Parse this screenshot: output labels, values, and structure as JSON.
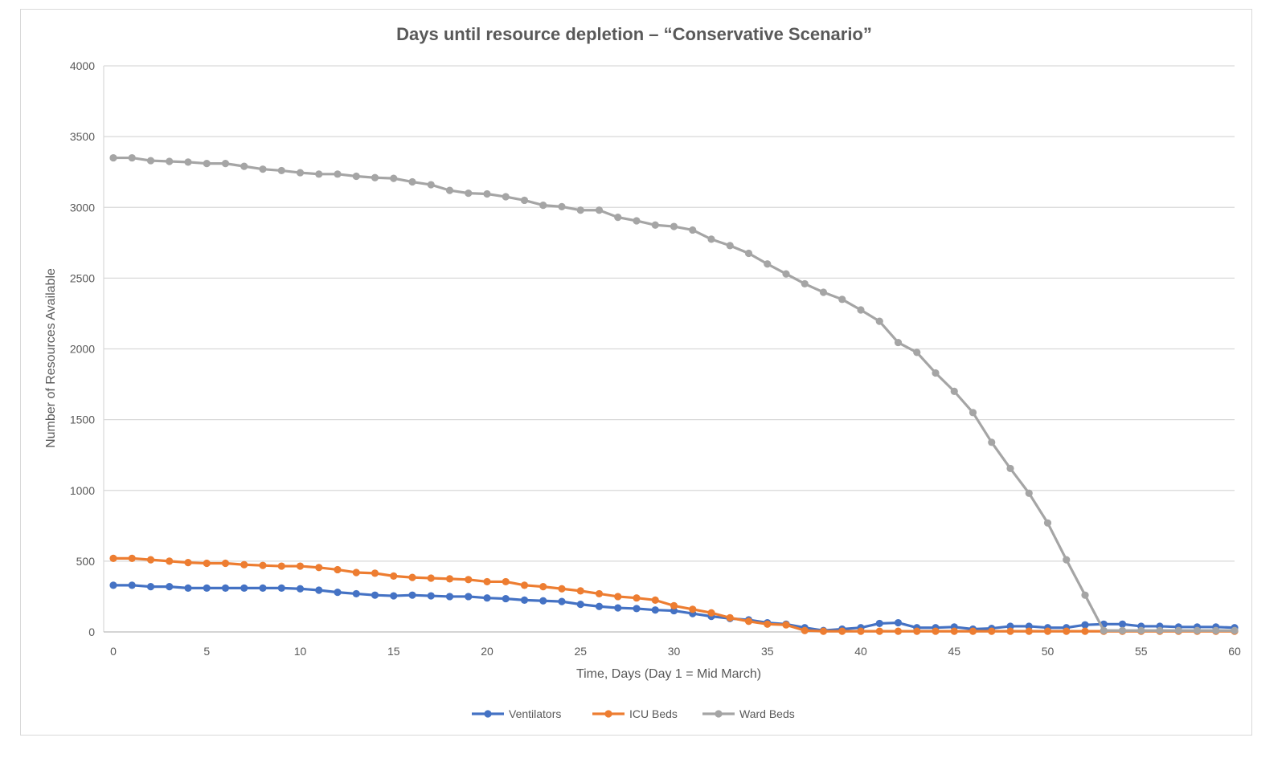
{
  "chart_data": {
    "type": "line",
    "title": "Days until resource depletion – “Conservative Scenario”",
    "xlabel": "Time, Days (Day 1 = Mid March)",
    "ylabel": "Number of Resources Available",
    "xlim": [
      0,
      60
    ],
    "ylim": [
      0,
      4000
    ],
    "x_ticks": [
      0,
      5,
      10,
      15,
      20,
      25,
      30,
      35,
      40,
      45,
      50,
      55,
      60
    ],
    "y_ticks": [
      0,
      500,
      1000,
      1500,
      2000,
      2500,
      3000,
      3500,
      4000
    ],
    "grid": "horizontal",
    "legend_position": "bottom",
    "x": [
      0,
      1,
      2,
      3,
      4,
      5,
      6,
      7,
      8,
      9,
      10,
      11,
      12,
      13,
      14,
      15,
      16,
      17,
      18,
      19,
      20,
      21,
      22,
      23,
      24,
      25,
      26,
      27,
      28,
      29,
      30,
      31,
      32,
      33,
      34,
      35,
      36,
      37,
      38,
      39,
      40,
      41,
      42,
      43,
      44,
      45,
      46,
      47,
      48,
      49,
      50,
      51,
      52,
      53,
      54,
      55,
      56,
      57,
      58,
      59,
      60
    ],
    "series": [
      {
        "name": "Ventilators",
        "color": "#4472c4",
        "values": [
          330,
          330,
          320,
          320,
          310,
          310,
          310,
          310,
          310,
          310,
          305,
          295,
          280,
          270,
          260,
          255,
          260,
          255,
          250,
          250,
          240,
          235,
          225,
          220,
          215,
          195,
          180,
          170,
          165,
          155,
          150,
          130,
          110,
          95,
          85,
          65,
          55,
          30,
          10,
          20,
          30,
          60,
          65,
          30,
          30,
          35,
          20,
          25,
          40,
          40,
          30,
          30,
          50,
          55,
          55,
          40,
          40,
          35,
          35,
          35,
          30
        ]
      },
      {
        "name": "ICU Beds",
        "color": "#ed7d31",
        "values": [
          520,
          520,
          510,
          500,
          490,
          485,
          485,
          475,
          470,
          465,
          465,
          455,
          440,
          420,
          415,
          395,
          385,
          380,
          375,
          370,
          355,
          355,
          330,
          320,
          305,
          290,
          270,
          250,
          240,
          225,
          185,
          160,
          135,
          100,
          75,
          55,
          50,
          10,
          5,
          5,
          5,
          5,
          5,
          5,
          5,
          5,
          5,
          5,
          5,
          5,
          5,
          5,
          5,
          5,
          5,
          5,
          5,
          5,
          5,
          5,
          5
        ]
      },
      {
        "name": "Ward Beds",
        "color": "#a5a5a5",
        "values": [
          3350,
          3350,
          3330,
          3325,
          3320,
          3310,
          3310,
          3290,
          3270,
          3260,
          3245,
          3235,
          3235,
          3220,
          3210,
          3205,
          3180,
          3160,
          3120,
          3100,
          3095,
          3075,
          3050,
          3015,
          3005,
          2980,
          2980,
          2930,
          2905,
          2875,
          2865,
          2840,
          2775,
          2730,
          2675,
          2600,
          2530,
          2460,
          2400,
          2350,
          2275,
          2195,
          2045,
          1975,
          1830,
          1700,
          1550,
          1340,
          1155,
          980,
          770,
          510,
          260,
          10,
          10,
          10,
          10,
          10,
          10,
          10,
          10
        ]
      }
    ]
  }
}
